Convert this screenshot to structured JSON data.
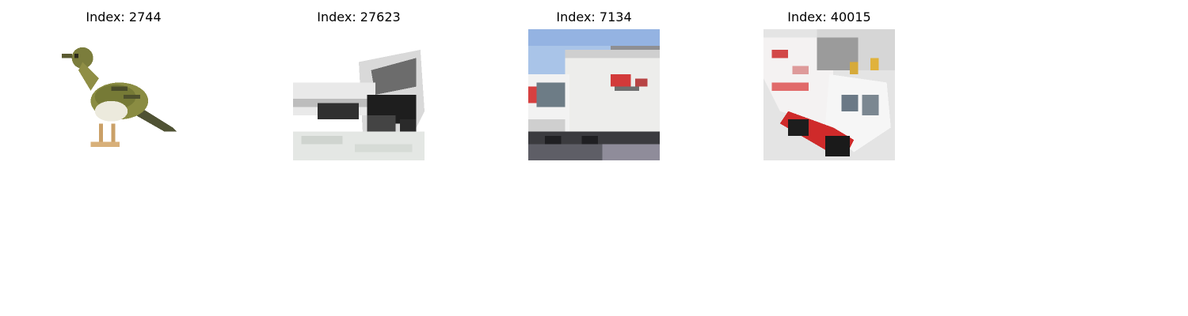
{
  "panels": [
    {
      "title": "Index: 2744",
      "subject": "bird"
    },
    {
      "title": "Index: 27623",
      "subject": "truck"
    },
    {
      "title": "Index: 7134",
      "subject": "truck"
    },
    {
      "title": "Index: 40015",
      "subject": "truck"
    }
  ]
}
